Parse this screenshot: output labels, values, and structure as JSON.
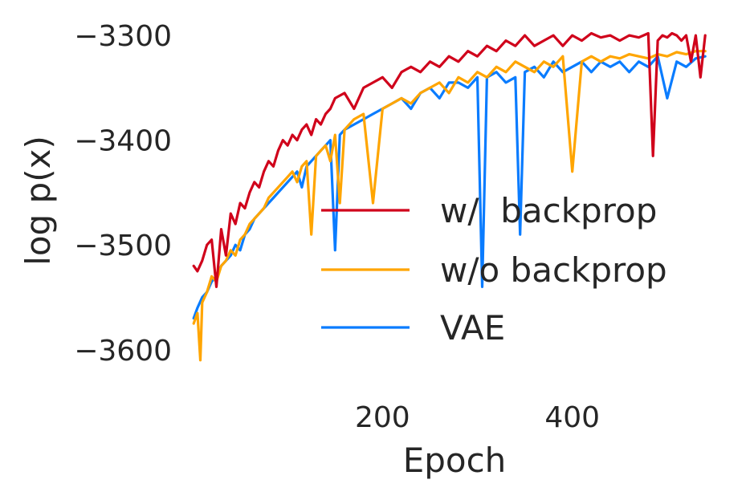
{
  "chart_data": {
    "type": "line",
    "title": "",
    "xlabel": "Epoch",
    "ylabel": "log p(x)",
    "xlim": [
      0,
      550
    ],
    "ylim": [
      -3640,
      -3280
    ],
    "xticks": [
      200,
      400
    ],
    "yticks": [
      -3300,
      -3400,
      -3500,
      -3600
    ],
    "grid": false,
    "legend_position": "center-right",
    "series": [
      {
        "name": "w/  backprop",
        "color": "#d0021b",
        "x": [
          1,
          5,
          10,
          15,
          20,
          25,
          30,
          35,
          40,
          45,
          50,
          55,
          60,
          65,
          70,
          75,
          80,
          85,
          90,
          95,
          100,
          105,
          110,
          115,
          120,
          125,
          130,
          135,
          140,
          145,
          150,
          160,
          170,
          180,
          190,
          200,
          210,
          220,
          230,
          240,
          250,
          260,
          270,
          280,
          290,
          300,
          310,
          320,
          330,
          340,
          350,
          360,
          370,
          380,
          390,
          400,
          410,
          420,
          430,
          440,
          450,
          460,
          470,
          480,
          485,
          490,
          495,
          500,
          505,
          510,
          515,
          520,
          525,
          530,
          535,
          540
        ],
        "y": [
          -3520,
          -3525,
          -3515,
          -3500,
          -3495,
          -3540,
          -3485,
          -3510,
          -3470,
          -3480,
          -3460,
          -3465,
          -3450,
          -3440,
          -3445,
          -3430,
          -3420,
          -3425,
          -3410,
          -3400,
          -3405,
          -3395,
          -3400,
          -3390,
          -3385,
          -3395,
          -3380,
          -3385,
          -3375,
          -3370,
          -3360,
          -3355,
          -3370,
          -3350,
          -3345,
          -3340,
          -3350,
          -3335,
          -3330,
          -3335,
          -3325,
          -3330,
          -3320,
          -3325,
          -3315,
          -3320,
          -3310,
          -3315,
          -3305,
          -3310,
          -3300,
          -3310,
          -3305,
          -3300,
          -3310,
          -3300,
          -3305,
          -3298,
          -3302,
          -3300,
          -3305,
          -3300,
          -3302,
          -3298,
          -3415,
          -3305,
          -3300,
          -3302,
          -3298,
          -3300,
          -3305,
          -3300,
          -3325,
          -3300,
          -3340,
          -3300
        ]
      },
      {
        "name": "w/o backprop",
        "color": "#ffa500",
        "x": [
          1,
          5,
          8,
          10,
          15,
          20,
          25,
          30,
          35,
          40,
          45,
          50,
          55,
          60,
          65,
          70,
          75,
          80,
          85,
          90,
          95,
          100,
          105,
          110,
          115,
          120,
          125,
          130,
          135,
          140,
          145,
          150,
          155,
          160,
          170,
          180,
          190,
          200,
          210,
          220,
          230,
          240,
          250,
          260,
          270,
          280,
          290,
          300,
          310,
          320,
          330,
          340,
          350,
          360,
          370,
          380,
          390,
          400,
          410,
          420,
          430,
          440,
          450,
          460,
          470,
          480,
          490,
          500,
          510,
          520,
          530,
          540
        ],
        "y": [
          -3575,
          -3565,
          -3610,
          -3555,
          -3545,
          -3530,
          -3535,
          -3520,
          -3515,
          -3505,
          -3510,
          -3495,
          -3490,
          -3480,
          -3475,
          -3470,
          -3465,
          -3455,
          -3450,
          -3445,
          -3440,
          -3435,
          -3430,
          -3440,
          -3425,
          -3420,
          -3490,
          -3415,
          -3410,
          -3405,
          -3420,
          -3395,
          -3460,
          -3390,
          -3380,
          -3375,
          -3460,
          -3370,
          -3365,
          -3360,
          -3365,
          -3355,
          -3350,
          -3345,
          -3355,
          -3340,
          -3345,
          -3335,
          -3340,
          -3330,
          -3335,
          -3325,
          -3330,
          -3335,
          -3325,
          -3330,
          -3320,
          -3430,
          -3325,
          -3320,
          -3325,
          -3320,
          -3322,
          -3318,
          -3320,
          -3322,
          -3318,
          -3320,
          -3316,
          -3318,
          -3315,
          -3315
        ]
      },
      {
        "name": "VAE",
        "color": "#0a7cff",
        "x": [
          1,
          5,
          10,
          15,
          20,
          25,
          30,
          35,
          40,
          45,
          50,
          55,
          60,
          65,
          70,
          75,
          80,
          85,
          90,
          95,
          100,
          105,
          110,
          115,
          120,
          125,
          130,
          135,
          140,
          145,
          150,
          155,
          160,
          170,
          180,
          190,
          200,
          210,
          220,
          230,
          240,
          250,
          260,
          270,
          280,
          290,
          300,
          305,
          310,
          320,
          330,
          340,
          345,
          350,
          360,
          370,
          380,
          390,
          400,
          410,
          420,
          430,
          440,
          450,
          460,
          470,
          480,
          490,
          500,
          510,
          520,
          530,
          540
        ],
        "y": [
          -3570,
          -3560,
          -3550,
          -3545,
          -3535,
          -3530,
          -3520,
          -3515,
          -3510,
          -3500,
          -3505,
          -3490,
          -3485,
          -3475,
          -3470,
          -3465,
          -3460,
          -3455,
          -3450,
          -3445,
          -3440,
          -3435,
          -3430,
          -3445,
          -3425,
          -3420,
          -3415,
          -3410,
          -3405,
          -3400,
          -3505,
          -3395,
          -3390,
          -3385,
          -3380,
          -3375,
          -3370,
          -3365,
          -3360,
          -3370,
          -3355,
          -3350,
          -3360,
          -3345,
          -3345,
          -3350,
          -3340,
          -3540,
          -3340,
          -3335,
          -3345,
          -3340,
          -3490,
          -3335,
          -3330,
          -3340,
          -3325,
          -3335,
          -3330,
          -3325,
          -3335,
          -3325,
          -3330,
          -3325,
          -3335,
          -3325,
          -3330,
          -3320,
          -3360,
          -3325,
          -3330,
          -3322,
          -3320
        ]
      }
    ]
  }
}
